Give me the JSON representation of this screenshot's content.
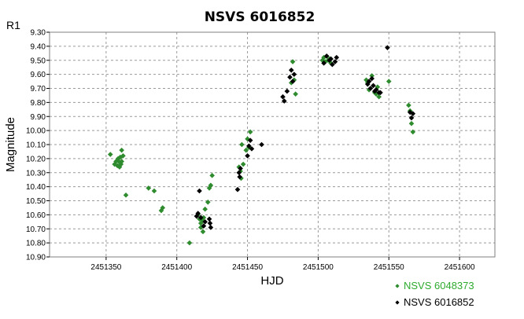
{
  "chart_data": {
    "type": "scatter",
    "title": "NSVS 6016852",
    "corner_label": "R1",
    "xlabel": "HJD",
    "ylabel": "Magnitude",
    "xlim": [
      2451310,
      2451625
    ],
    "ylim": [
      9.3,
      10.9
    ],
    "y_inverted": true,
    "grid": true,
    "legend_position": "bottom-right",
    "x_ticks": [
      "2451350",
      "2451400",
      "2451450",
      "2451500",
      "2451550",
      "2451600"
    ],
    "x_tick_values": [
      2451350,
      2451400,
      2451450,
      2451500,
      2451550,
      2451600
    ],
    "y_ticks": [
      "9.30",
      "9.40",
      "9.50",
      "9.60",
      "9.70",
      "9.80",
      "9.90",
      "10.00",
      "10.10",
      "10.20",
      "10.30",
      "10.40",
      "10.50",
      "10.60",
      "10.70",
      "10.80",
      "10.90"
    ],
    "series": [
      {
        "name": "NSVS 6048373",
        "color": "#2e8b2e",
        "x": [
          2451353,
          2451356,
          2451357,
          2451358,
          2451358.5,
          2451359,
          2451359.5,
          2451360,
          2451360.5,
          2451361,
          2451361,
          2451362,
          2451364,
          2451380,
          2451384,
          2451389,
          2451390,
          2451409,
          2451415,
          2451416,
          2451417,
          2451417,
          2451418,
          2451418.5,
          2451419,
          2451420,
          2451422,
          2451423,
          2451424,
          2451425,
          2451444,
          2451445,
          2451445.5,
          2451446,
          2451447,
          2451449,
          2451450,
          2451451,
          2451452,
          2451481,
          2451482,
          2451483,
          2451484,
          2451503,
          2451504,
          2451505,
          2451506,
          2451507,
          2451508,
          2451509,
          2451534,
          2451535,
          2451536,
          2451538,
          2451540,
          2451541,
          2451542,
          2451543,
          2451550,
          2451564,
          2451565,
          2451566,
          2451567
        ],
        "y": [
          10.17,
          10.24,
          10.22,
          10.25,
          10.2,
          10.22,
          10.26,
          10.19,
          10.24,
          10.14,
          10.22,
          10.18,
          10.46,
          10.41,
          10.43,
          10.57,
          10.55,
          10.8,
          10.6,
          10.63,
          10.66,
          10.69,
          10.64,
          10.72,
          10.62,
          10.56,
          10.51,
          10.41,
          10.39,
          10.32,
          10.26,
          10.29,
          10.34,
          10.1,
          10.24,
          10.14,
          10.06,
          10.12,
          10.01,
          9.66,
          9.51,
          9.64,
          9.74,
          9.5,
          9.48,
          9.51,
          9.47,
          9.5,
          9.49,
          9.52,
          9.64,
          9.66,
          9.71,
          9.61,
          9.73,
          9.74,
          9.69,
          9.76,
          9.65,
          9.82,
          9.86,
          9.95,
          10.01
        ]
      },
      {
        "name": "NSVS 6016852",
        "color": "#000000",
        "x": [
          2451414,
          2451415,
          2451416,
          2451417,
          2451423,
          2451423.5,
          2451424,
          2451419,
          2451420,
          2451443,
          2451444,
          2451444.5,
          2451445,
          2451450,
          2451451,
          2451452,
          2451453,
          2451460,
          2451475,
          2451476,
          2451478,
          2451480,
          2451481,
          2451482,
          2451483,
          2451504,
          2451506,
          2451508,
          2451509,
          2451510,
          2451512,
          2451513,
          2451535,
          2451536,
          2451537,
          2451538,
          2451539,
          2451540,
          2451541,
          2451543,
          2451544,
          2451549,
          2451565,
          2451566,
          2451567
        ],
        "y": [
          10.61,
          10.59,
          10.43,
          10.62,
          10.63,
          10.66,
          10.69,
          10.68,
          10.65,
          10.42,
          10.3,
          10.33,
          10.27,
          10.18,
          10.11,
          10.07,
          10.13,
          10.1,
          9.76,
          9.79,
          9.72,
          9.62,
          9.57,
          9.65,
          9.6,
          9.52,
          9.47,
          9.5,
          9.49,
          9.53,
          9.51,
          9.48,
          9.67,
          9.65,
          9.7,
          9.63,
          9.68,
          9.72,
          9.71,
          9.73,
          9.73,
          9.41,
          9.87,
          9.91,
          9.88
        ]
      }
    ]
  }
}
